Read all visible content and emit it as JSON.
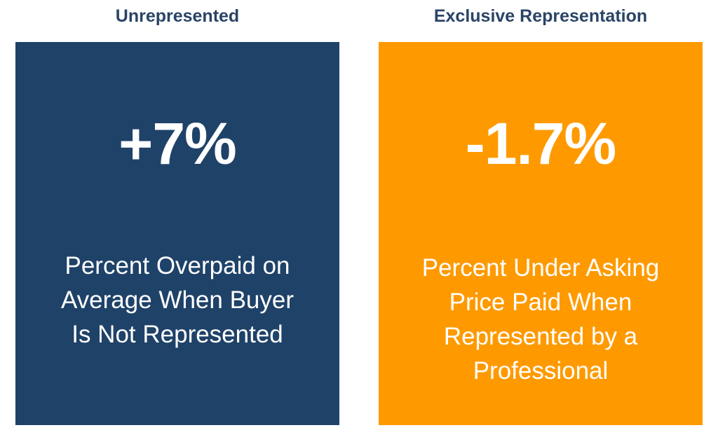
{
  "cards": [
    {
      "title": "Unrepresented",
      "value": "+7%",
      "description": [
        "Percent Overpaid on",
        "Average When Buyer",
        "Is Not Represented"
      ]
    },
    {
      "title": "Exclusive Representation",
      "value": "-1.7%",
      "description": [
        "Percent Under Asking",
        "Price Paid When",
        "Represented by a",
        "Professional"
      ]
    }
  ]
}
